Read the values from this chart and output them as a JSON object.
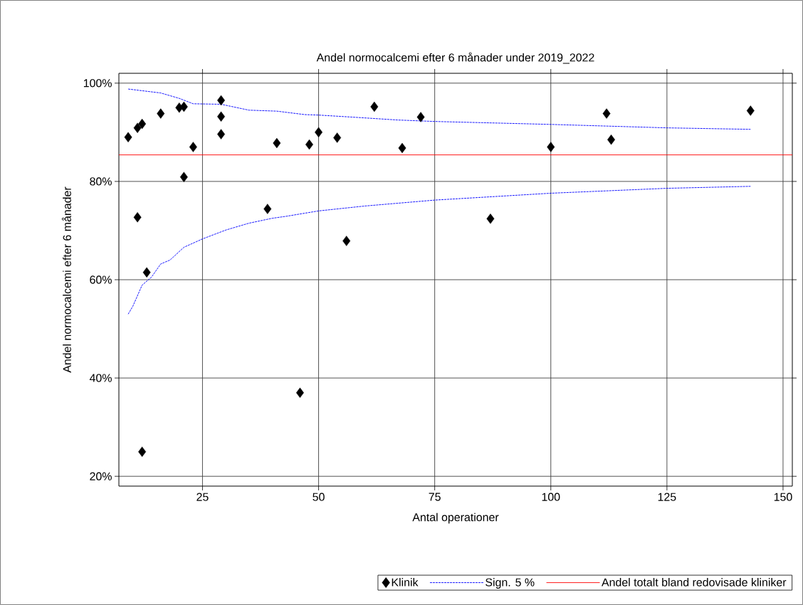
{
  "chart_data": {
    "type": "scatter",
    "title": "Andel normocalcemi efter 6 månader under 2019_2022",
    "xlabel": "Antal operationer",
    "ylabel": "Andel normocalcemi efter 6 månader",
    "series": [
      {
        "name": "Klinik",
        "marker": "diamond",
        "color": "#000000",
        "x": [
          9,
          11,
          12,
          16,
          20,
          21,
          23,
          21,
          11,
          13,
          29,
          29,
          29,
          41,
          39,
          48,
          50,
          54,
          56,
          62,
          68,
          72,
          12,
          46,
          87,
          100,
          112,
          113,
          143
        ],
        "values": [
          89.0,
          90.9,
          91.7,
          93.8,
          95.0,
          95.2,
          87.0,
          80.9,
          72.7,
          61.5,
          96.5,
          93.2,
          89.6,
          87.8,
          74.4,
          87.5,
          90.0,
          88.9,
          67.9,
          95.2,
          86.8,
          93.1,
          25.0,
          37.0,
          72.4,
          87.0,
          93.8,
          88.5,
          94.4
        ]
      },
      {
        "name": "Sign. 5 %",
        "type": "line",
        "marker": "none",
        "line_style": "dashed",
        "color": "#0000ff",
        "x": [
          9,
          16,
          20,
          23,
          29,
          35,
          41,
          47,
          50,
          57,
          67,
          75,
          100,
          125,
          143
        ],
        "values": [
          98.8,
          98.0,
          96.9,
          95.8,
          95.7,
          94.5,
          94.3,
          93.6,
          93.5,
          93.1,
          92.5,
          92.2,
          91.6,
          90.9,
          90.6
        ]
      },
      {
        "type": "line",
        "marker": "none",
        "line_style": "dashed",
        "color": "#0000ff",
        "x": [
          9,
          10,
          12,
          14,
          16,
          18,
          21,
          25,
          30,
          35,
          40,
          43,
          50,
          60,
          75,
          100,
          125,
          143
        ],
        "values": [
          53.0,
          54.6,
          58.9,
          60.5,
          63.2,
          64.0,
          66.6,
          68.3,
          70.1,
          71.5,
          72.5,
          72.9,
          74.0,
          75.0,
          76.2,
          77.6,
          78.6,
          79.0
        ]
      }
    ],
    "ref_lines": [
      {
        "axis": "y",
        "value": 85.4,
        "label": "Andel totalt bland redovisade kliniker",
        "color": "#ff0000"
      }
    ],
    "xlim": [
      7,
      152
    ],
    "ylim": [
      18,
      102
    ],
    "xticks": [
      25,
      50,
      75,
      100,
      125,
      150
    ],
    "yticks": [
      {
        "value": 20,
        "label": "20%"
      },
      {
        "value": 40,
        "label": "40%"
      },
      {
        "value": 60,
        "label": "60%"
      },
      {
        "value": 80,
        "label": "80%"
      },
      {
        "value": 100,
        "label": "100%"
      }
    ],
    "grid": true,
    "legend": "bottom"
  }
}
